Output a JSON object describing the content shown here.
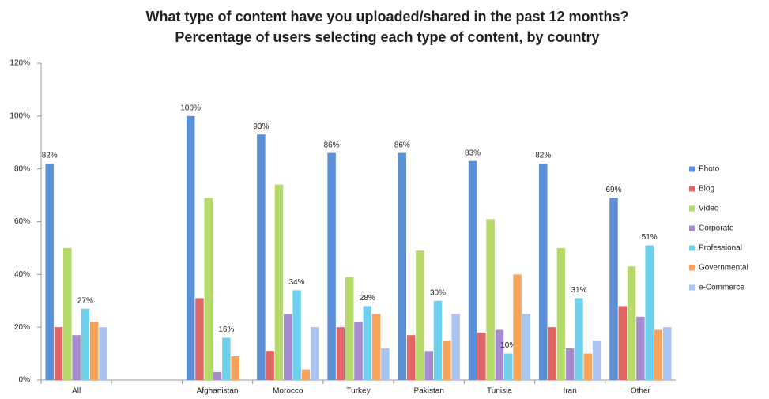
{
  "chart_data": {
    "type": "bar",
    "title": "What type of content have you uploaded/shared in the past 12 months?",
    "subtitle": "Percentage of users selecting each type of content, by country",
    "categories": [
      "All",
      null,
      "Afghanistan",
      "Morocco",
      "Turkey",
      "Pakistan",
      "Tunisia",
      "Iran",
      "Other"
    ],
    "series": [
      {
        "name": "Photo",
        "color": "#5b8fd6",
        "values": [
          82,
          null,
          100,
          93,
          86,
          86,
          83,
          82,
          69
        ],
        "value_labels": [
          "82%",
          null,
          "100%",
          "93%",
          "86%",
          "86%",
          "83%",
          "82%",
          "69%"
        ]
      },
      {
        "name": "Blog",
        "color": "#e06666",
        "values": [
          20,
          null,
          31,
          11,
          20,
          17,
          18,
          20,
          28
        ]
      },
      {
        "name": "Video",
        "color": "#b5d96b",
        "values": [
          50,
          null,
          69,
          74,
          39,
          49,
          61,
          50,
          43
        ]
      },
      {
        "name": "Corporate",
        "color": "#a58ad0",
        "values": [
          17,
          null,
          3,
          25,
          22,
          11,
          19,
          12,
          24
        ]
      },
      {
        "name": "Professional",
        "color": "#6fd0ee",
        "values": [
          27,
          null,
          16,
          34,
          28,
          30,
          10,
          31,
          51
        ],
        "value_labels": [
          "27%",
          null,
          "16%",
          "34%",
          "28%",
          "30%",
          "10%",
          "31%",
          "51%"
        ]
      },
      {
        "name": "Governmental",
        "color": "#f7a35c",
        "values": [
          22,
          null,
          9,
          4,
          25,
          15,
          40,
          10,
          19
        ]
      },
      {
        "name": "e-Commerce",
        "color": "#a9c4ee",
        "values": [
          20,
          null,
          0,
          20,
          12,
          25,
          25,
          15,
          20
        ]
      }
    ],
    "ylim": [
      0,
      120
    ],
    "yticks": [
      {
        "value": 0,
        "label": "0%"
      },
      {
        "value": 20,
        "label": "20%"
      },
      {
        "value": 40,
        "label": "40%"
      },
      {
        "value": 60,
        "label": "60%"
      },
      {
        "value": 80,
        "label": "80%"
      },
      {
        "value": 100,
        "label": "100%"
      },
      {
        "value": 120,
        "label": "120%"
      }
    ],
    "legend": "right"
  }
}
